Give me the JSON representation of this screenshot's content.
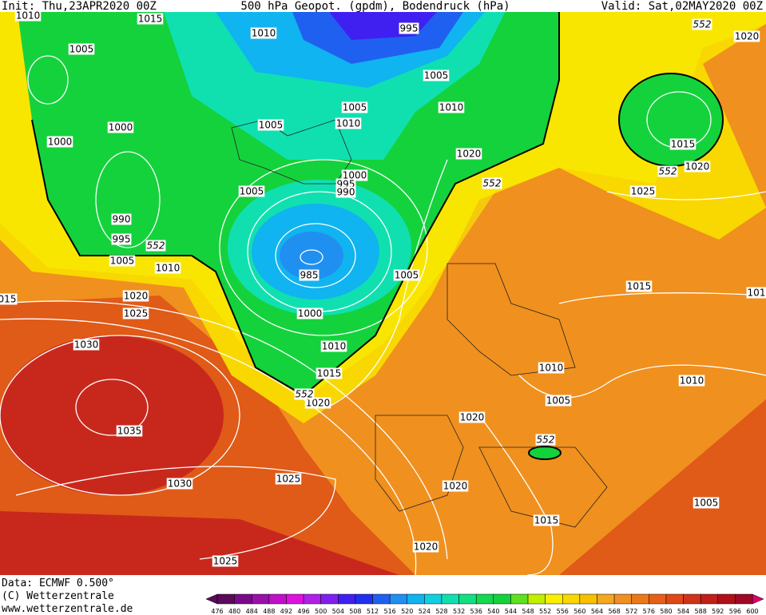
{
  "header": {
    "init": "Init: Thu,23APR2020 00Z",
    "title": "500 hPa Geopot. (gpdm), Bodendruck (hPa)",
    "valid": "Valid: Sat,02MAY2020 00Z"
  },
  "isobar_labels": [
    "1010",
    "1015",
    "1010",
    "995",
    "1005",
    "1005",
    "1010",
    "1005",
    "1010",
    "1005",
    "1000",
    "1000",
    "1020",
    "1000",
    "995",
    "990",
    "1005",
    "990",
    "995",
    "1005",
    "1010",
    "985",
    "1005",
    "015",
    "1020",
    "1025",
    "1000",
    "1030",
    "1010",
    "1015",
    "1020",
    "1020",
    "1035",
    "1025",
    "1030",
    "1020",
    "1015",
    "1020",
    "1025",
    "1010",
    "1005",
    "1010",
    "1005",
    "1015",
    "101",
    "1025",
    "1015",
    "1020",
    "1020"
  ],
  "contour_552_labels": [
    "552",
    "552",
    "552",
    "552",
    "552",
    "552"
  ],
  "footer": {
    "data": "Data: ECMWF  0.500°",
    "copyright": "(C) Wetterzentrale",
    "url": "www.wetterzentrale.de"
  },
  "scale": {
    "values": [
      476,
      480,
      484,
      488,
      492,
      496,
      500,
      504,
      508,
      512,
      516,
      520,
      524,
      528,
      532,
      536,
      540,
      544,
      548,
      552,
      556,
      560,
      564,
      568,
      572,
      576,
      580,
      584,
      588,
      592,
      596,
      600
    ],
    "colors": [
      "#5a0a5a",
      "#7a0a8a",
      "#9a10aa",
      "#c010c8",
      "#e010e0",
      "#b020e8",
      "#8020f0",
      "#4020f0",
      "#2030f0",
      "#2060f0",
      "#2090f0",
      "#10b4f0",
      "#10d0e0",
      "#10e0b0",
      "#10e080",
      "#14d850",
      "#14d23c",
      "#60e020",
      "#c0f000",
      "#f8f000",
      "#f8d800",
      "#f8c000",
      "#f4a820",
      "#f09020",
      "#ec7818",
      "#e86018",
      "#e04818",
      "#d03418",
      "#c02018",
      "#b01018",
      "#a00828"
    ]
  }
}
